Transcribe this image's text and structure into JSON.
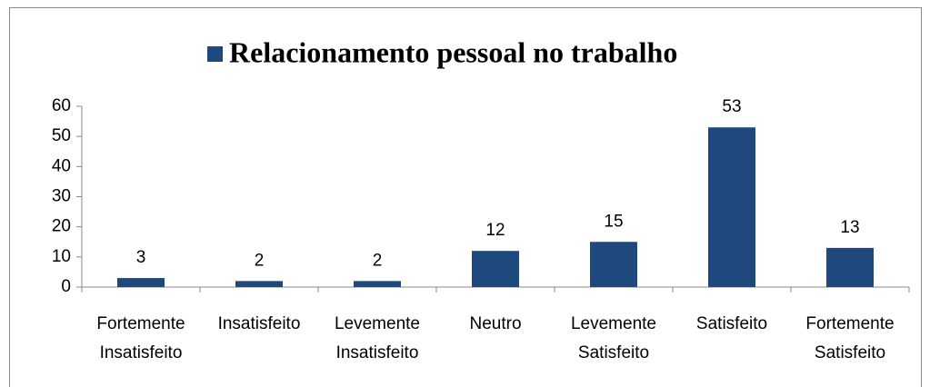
{
  "chart_data": {
    "type": "bar",
    "categories": [
      "Fortemente Insatisfeito",
      "Insatisfeito",
      "Levemente Insatisfeito",
      "Neutro",
      "Levemente Satisfeito",
      "Satisfeito",
      "Fortemente Satisfeito"
    ],
    "series": [
      {
        "name": "Relacionamento pessoal no trabalho",
        "color": "#1f497d",
        "values": [
          3,
          2,
          2,
          12,
          15,
          53,
          13
        ]
      }
    ],
    "ylim": [
      0,
      60
    ],
    "yticks": [
      0,
      10,
      20,
      30,
      40,
      50,
      60
    ],
    "legend": "top",
    "data_labels": true
  }
}
